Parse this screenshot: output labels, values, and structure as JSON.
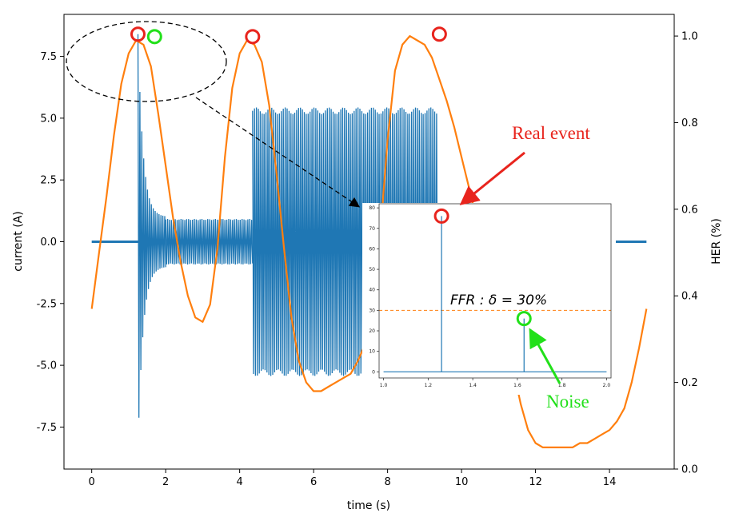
{
  "colors": {
    "current": "#1f77b4",
    "her": "#ff7f0e",
    "real_marker": "#e8241d",
    "noise_marker": "#22e01a",
    "threshold": "#ff7f0e"
  },
  "annotations": {
    "real_event": "Real event",
    "noise": "Noise",
    "ffr_label": "FFR : δ = 30%"
  },
  "chart_data": [
    {
      "type": "line",
      "xlabel": "time (s)",
      "ylabel": "current (A)",
      "ylabel_right": "HER (%)",
      "xlim": [
        -0.75,
        15.75
      ],
      "ylim": [
        -9.2,
        9.2
      ],
      "ylim_right": [
        0,
        1.05
      ],
      "x_ticks": [
        "0",
        "2",
        "4",
        "6",
        "8",
        "10",
        "12",
        "14"
      ],
      "y_ticks": [
        "7.5",
        "5.0",
        "2.5",
        "0.0",
        "-2.5",
        "-5.0",
        "-7.5"
      ],
      "y_ticks_right": [
        "1.0",
        "0.8",
        "0.6",
        "0.4",
        "0.2",
        "0.0"
      ],
      "series": [
        {
          "axis": "left",
          "segments": [
            {
              "t0": 0.0,
              "t1": 1.25,
              "amp_start": 0.0,
              "amp_end": 0.0
            },
            {
              "t0": 1.25,
              "t1": 2.0,
              "amp_start": 8.4,
              "amp_end": 1.0
            },
            {
              "t0": 2.0,
              "t1": 4.35,
              "amp_start": 0.9,
              "amp_end": 0.9
            },
            {
              "t0": 4.35,
              "t1": 9.35,
              "amp_start": 5.3,
              "amp_end": 5.3
            },
            {
              "t0": 9.35,
              "t1": 15.0,
              "amp_start": 0.0,
              "amp_end": 0.0
            }
          ]
        },
        {
          "axis": "right",
          "x": [
            0.0,
            0.2,
            0.4,
            0.6,
            0.8,
            1.0,
            1.2,
            1.4,
            1.6,
            1.8,
            2.0,
            2.2,
            2.4,
            2.6,
            2.8,
            3.0,
            3.2,
            3.4,
            3.6,
            3.8,
            4.0,
            4.2,
            4.4,
            4.6,
            4.8,
            5.0,
            5.2,
            5.4,
            5.6,
            5.8,
            6.0,
            6.2,
            6.4,
            6.6,
            6.8,
            7.0,
            7.2,
            7.4,
            7.6,
            7.8,
            8.0,
            8.2,
            8.4,
            8.6,
            8.8,
            9.0,
            9.2,
            9.4,
            9.6,
            9.8,
            10.0,
            10.2,
            10.4,
            10.6,
            10.8,
            11.0,
            11.2,
            11.4,
            11.6,
            11.8,
            12.0,
            12.2,
            12.4,
            12.6,
            12.8,
            13.0,
            13.2,
            13.4,
            13.6,
            13.8,
            14.0,
            14.2,
            14.4,
            14.6,
            14.8,
            15.0
          ],
          "values": [
            0.37,
            0.5,
            0.63,
            0.77,
            0.89,
            0.96,
            0.99,
            0.98,
            0.93,
            0.82,
            0.7,
            0.58,
            0.48,
            0.4,
            0.35,
            0.34,
            0.38,
            0.51,
            0.72,
            0.88,
            0.96,
            0.99,
            0.98,
            0.94,
            0.84,
            0.68,
            0.51,
            0.35,
            0.25,
            0.2,
            0.18,
            0.18,
            0.19,
            0.2,
            0.21,
            0.22,
            0.25,
            0.29,
            0.38,
            0.54,
            0.76,
            0.92,
            0.98,
            1.0,
            0.99,
            0.98,
            0.95,
            0.9,
            0.85,
            0.79,
            0.72,
            0.65,
            0.58,
            0.51,
            0.44,
            0.37,
            0.3,
            0.23,
            0.15,
            0.09,
            0.06,
            0.05,
            0.05,
            0.05,
            0.05,
            0.05,
            0.06,
            0.06,
            0.07,
            0.08,
            0.09,
            0.11,
            0.14,
            0.2,
            0.28,
            0.37
          ]
        }
      ],
      "markers": [
        {
          "kind": "real",
          "x": 1.25,
          "y": 8.4
        },
        {
          "kind": "noise",
          "x": 1.7,
          "y": 8.3
        },
        {
          "kind": "real",
          "x": 4.35,
          "y": 8.3
        },
        {
          "kind": "real",
          "x": 9.4,
          "y": 8.4
        }
      ]
    },
    {
      "type": "line",
      "xlim": [
        0.98,
        2.02
      ],
      "ylim": [
        -3,
        82
      ],
      "x_ticks": [
        "1.0",
        "1.2",
        "1.4",
        "1.6",
        "1.8",
        "2.0"
      ],
      "y_ticks": [
        "80",
        "70",
        "60",
        "50",
        "40",
        "30",
        "20",
        "10",
        "0"
      ],
      "threshold": 30,
      "spikes": [
        {
          "x": 1.26,
          "y": 76
        },
        {
          "x": 1.63,
          "y": 26
        }
      ],
      "baseline": 0
    }
  ]
}
